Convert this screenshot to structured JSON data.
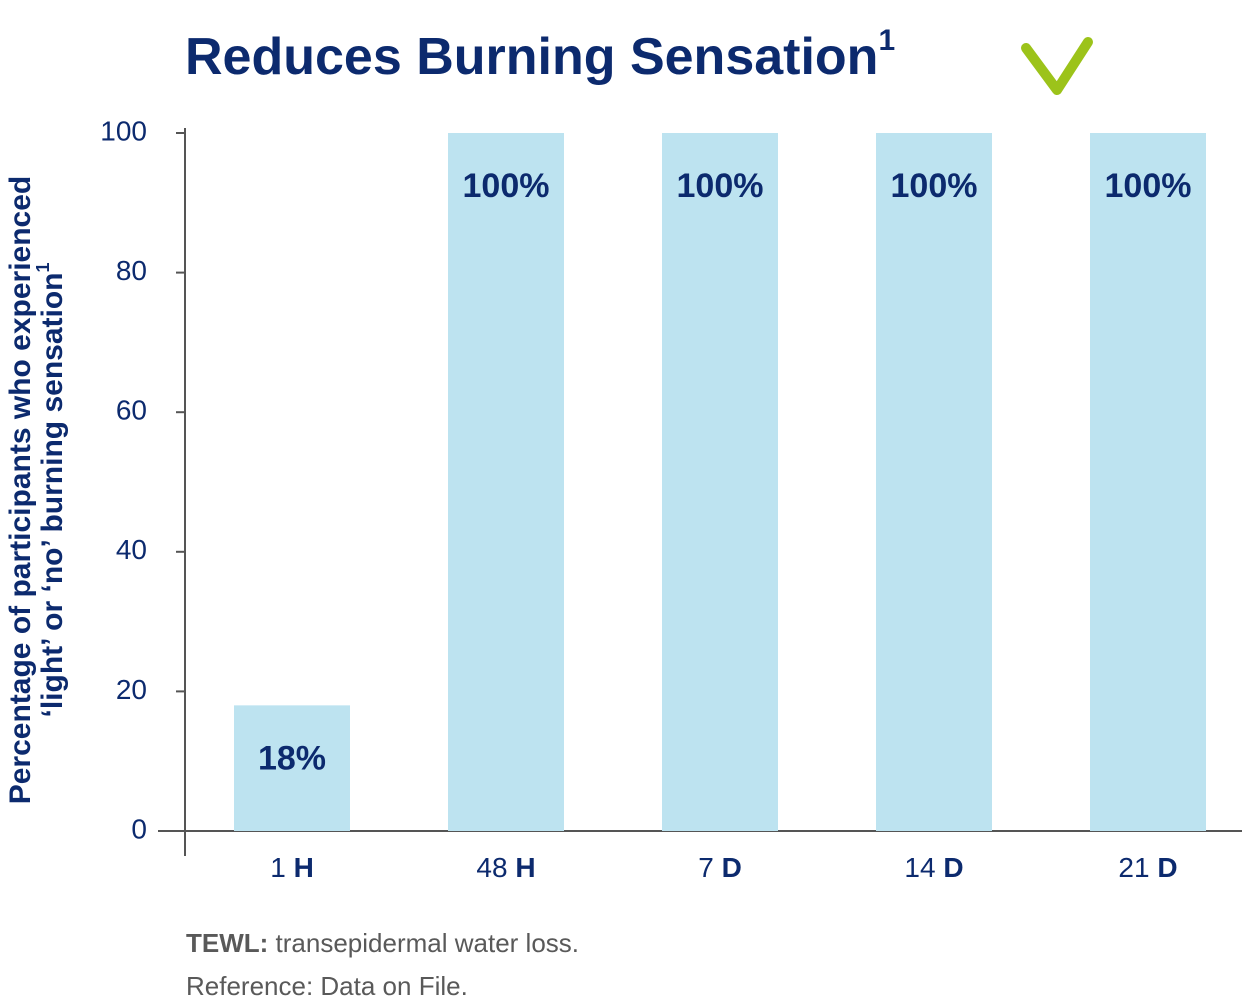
{
  "chart_data": {
    "type": "bar",
    "title": "Reduces Burning Sensation",
    "title_note": "1",
    "y_label": [
      "Percentage of participants who experienced",
      "‘light’ or ‘no’ burning sensation"
    ],
    "y_label_note": "1",
    "categories": [
      "1 H",
      "48 H",
      "7 D",
      "14 D",
      "21 D"
    ],
    "values": [
      18,
      100,
      100,
      100,
      100
    ],
    "value_labels": [
      "18%",
      "100%",
      "100%",
      "100%",
      "100%"
    ],
    "color": "#bde3f0",
    "ylim": [
      0,
      100
    ],
    "yticks": [
      0,
      20,
      40,
      60,
      80,
      100
    ],
    "grid": false,
    "footnotes": [
      {
        "term": "TEWL:",
        "text": "transepidermal water loss."
      },
      {
        "text": "Reference: Data on File."
      }
    ]
  }
}
